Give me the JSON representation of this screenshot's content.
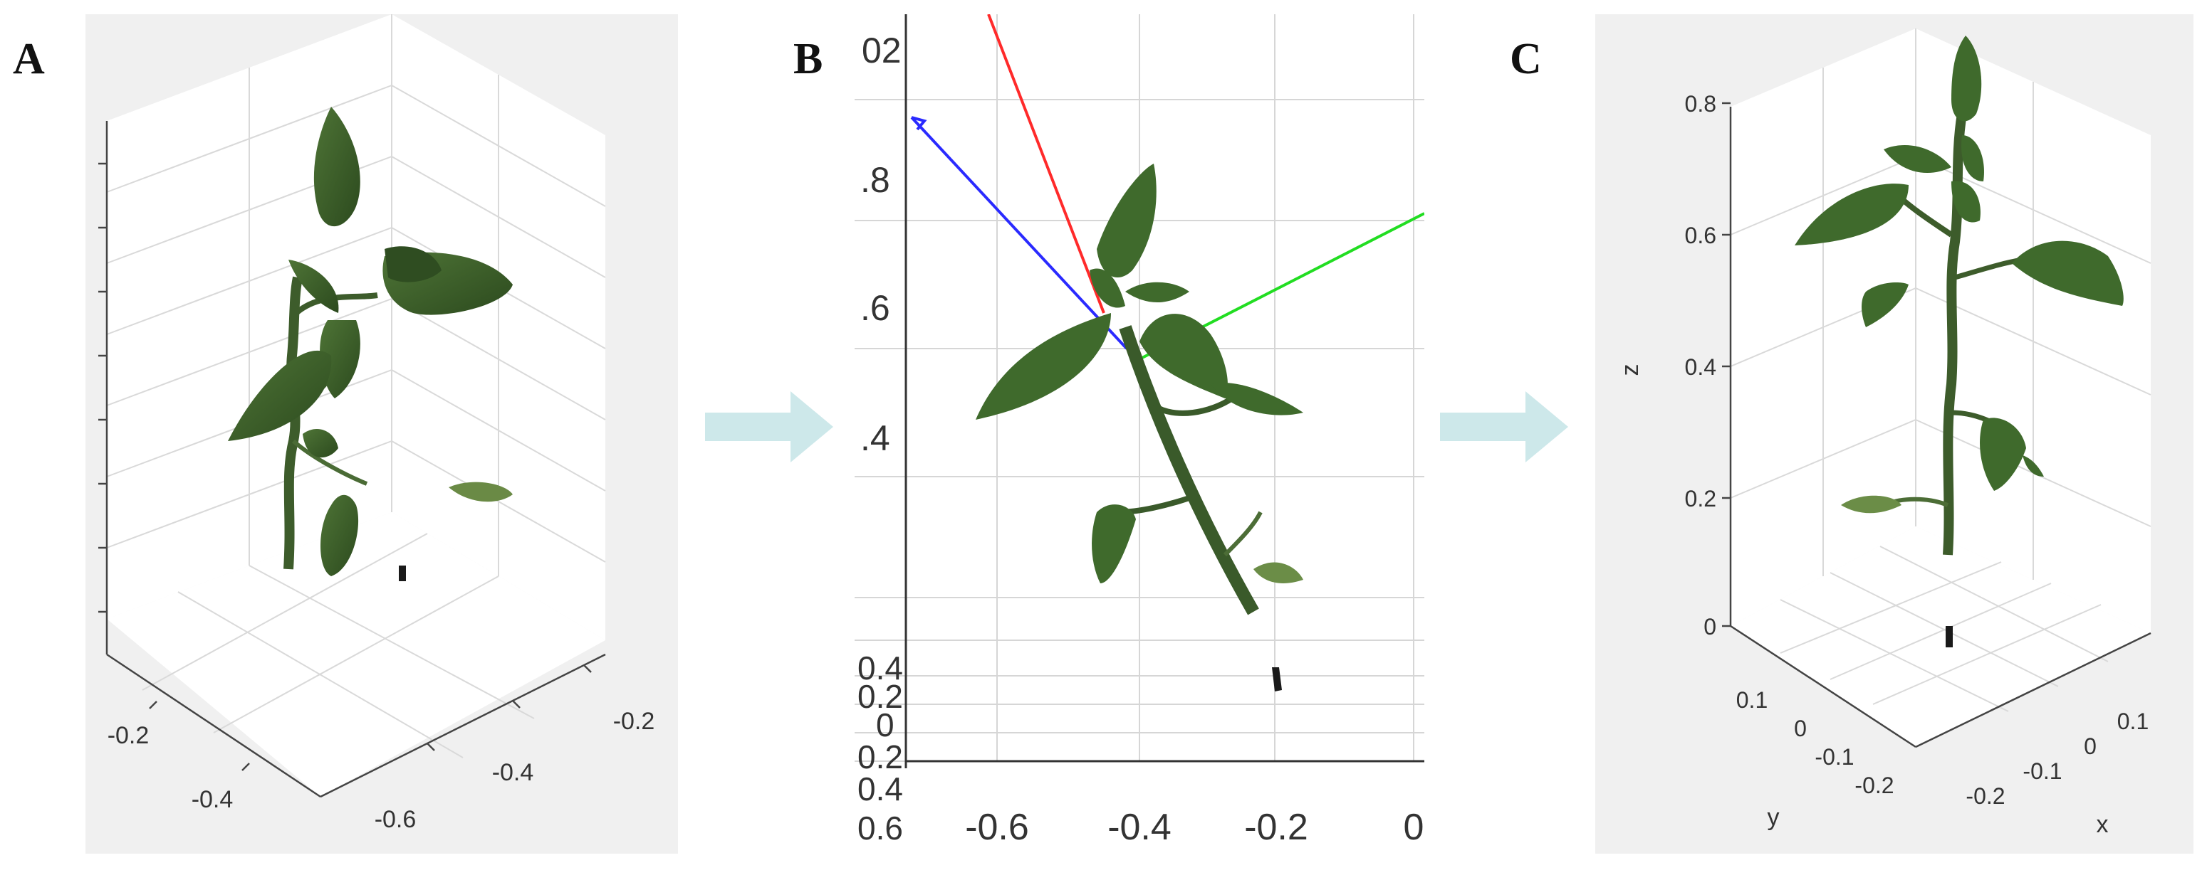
{
  "figure": {
    "panels": [
      {
        "letter": "A",
        "ticks_left": [
          "-0.2",
          "-0.4"
        ],
        "ticks_right": [
          "-0.2",
          "-0.4",
          "-0.6"
        ]
      },
      {
        "letter": "B",
        "y_ticks_top": [
          "02",
          ".8",
          ".6",
          ".4"
        ],
        "y_ticks_bottom": [
          "0.4",
          "0.2",
          "0",
          "0.2",
          "0.4",
          "0.6"
        ],
        "x_ticks": [
          "-0.6",
          "-0.4",
          "-0.2",
          "0"
        ],
        "axis_colors": {
          "x": "#ff2a2a",
          "y": "#2a2aff",
          "z": "#22dd22"
        }
      },
      {
        "letter": "C",
        "z_label": "z",
        "z_ticks": [
          "0.8",
          "0.6",
          "0.4",
          "0.2",
          "0"
        ],
        "y_label": "y",
        "y_ticks": [
          "0.1",
          "0",
          "-0.1",
          "-0.2"
        ],
        "x_label": "x",
        "x_ticks": [
          "-0.2",
          "-0.1",
          "0",
          "0.1"
        ]
      }
    ],
    "arrow_color": "#cde8ea",
    "leaf_color": "#3c5e2a"
  }
}
